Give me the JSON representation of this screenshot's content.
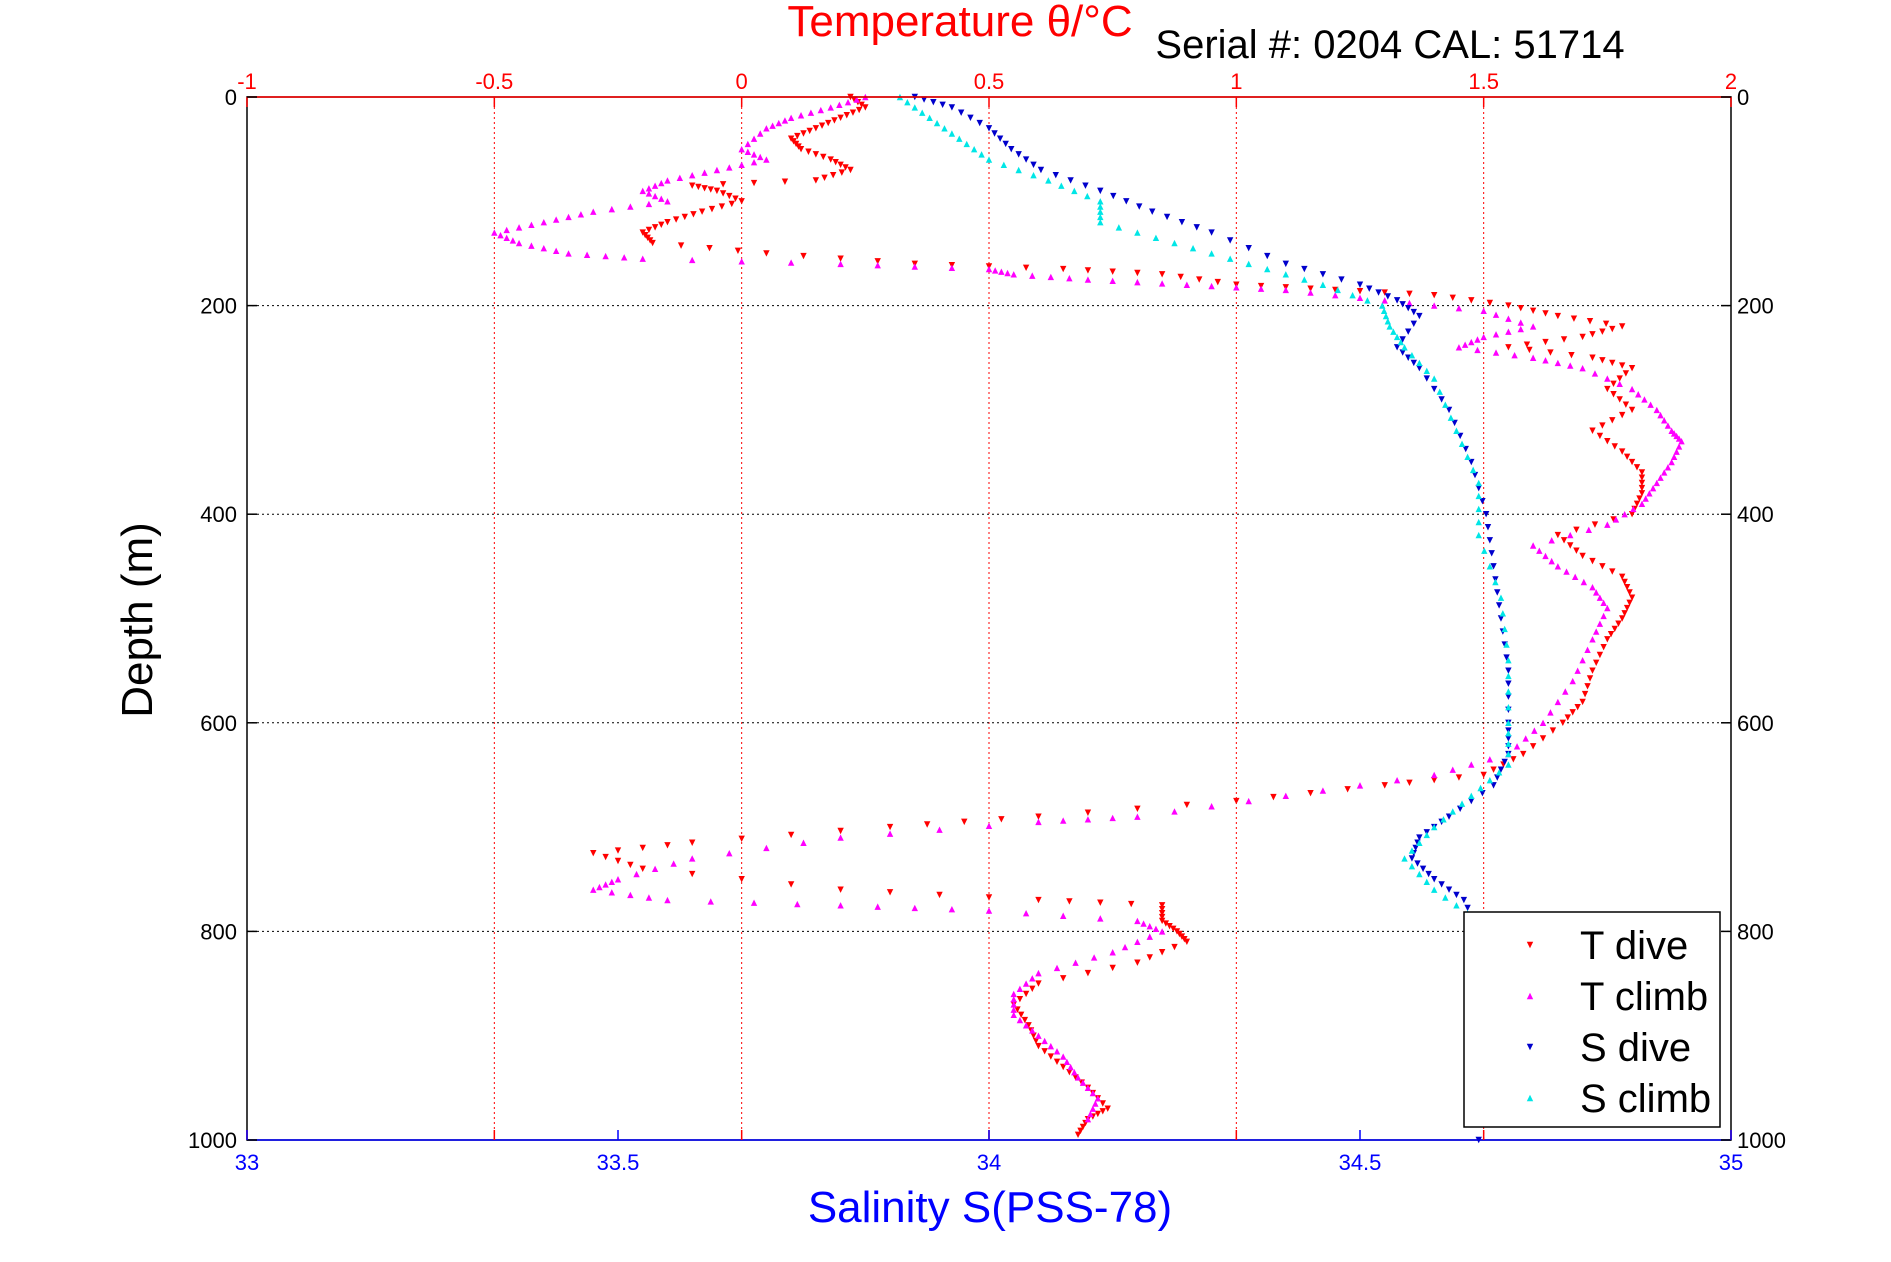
{
  "serial_label": "Serial #: 0204  CAL: 51714",
  "chart_data": {
    "type": "scatter",
    "top_axis": {
      "label": "Temperature θ/°C",
      "range": [
        -1,
        2
      ],
      "ticks": [
        "-1",
        "-0.5",
        "0",
        "0.5",
        "1",
        "1.5",
        "2"
      ],
      "color": "#ff0000"
    },
    "bottom_axis": {
      "label": "Salinity S(PSS-78)",
      "range": [
        33,
        35
      ],
      "ticks": [
        "33",
        "33.5",
        "34",
        "34.5",
        "35"
      ],
      "color": "#0000ff"
    },
    "y_axis": {
      "label": "Depth (m)",
      "range": [
        0,
        1000
      ],
      "reversed": true,
      "ticks": [
        "0",
        "200",
        "400",
        "600",
        "800",
        "1000"
      ]
    },
    "grid": true,
    "legend": {
      "position": "bottom-right",
      "entries": [
        {
          "label": "T dive",
          "color": "#ff0000",
          "marker": "triangle-down"
        },
        {
          "label": "T climb",
          "color": "#ff00ff",
          "marker": "triangle-up"
        },
        {
          "label": "S dive",
          "color": "#0000cc",
          "marker": "triangle-down"
        },
        {
          "label": "S climb",
          "color": "#00e6e6",
          "marker": "triangle-up"
        }
      ]
    },
    "series": [
      {
        "name": "T dive",
        "axis": "temperature",
        "color": "#ff0000",
        "points": [
          [
            0.22,
            0
          ],
          [
            0.25,
            10
          ],
          [
            0.2,
            20
          ],
          [
            0.15,
            30
          ],
          [
            0.1,
            40
          ],
          [
            0.12,
            50
          ],
          [
            0.18,
            60
          ],
          [
            0.22,
            70
          ],
          [
            0.15,
            80
          ],
          [
            -0.1,
            85
          ],
          [
            -0.05,
            90
          ],
          [
            0.0,
            100
          ],
          [
            -0.08,
            110
          ],
          [
            -0.15,
            120
          ],
          [
            -0.2,
            130
          ],
          [
            -0.18,
            140
          ],
          [
            0.05,
            150
          ],
          [
            0.35,
            160
          ],
          [
            0.65,
            165
          ],
          [
            0.85,
            170
          ],
          [
            1.0,
            180
          ],
          [
            1.2,
            185
          ],
          [
            1.4,
            190
          ],
          [
            1.55,
            200
          ],
          [
            1.65,
            210
          ],
          [
            1.78,
            220
          ],
          [
            1.7,
            230
          ],
          [
            1.55,
            240
          ],
          [
            1.72,
            250
          ],
          [
            1.8,
            260
          ],
          [
            1.75,
            280
          ],
          [
            1.8,
            300
          ],
          [
            1.72,
            320
          ],
          [
            1.78,
            340
          ],
          [
            1.82,
            360
          ],
          [
            1.82,
            380
          ],
          [
            1.8,
            400
          ],
          [
            1.65,
            420
          ],
          [
            1.7,
            440
          ],
          [
            1.78,
            460
          ],
          [
            1.8,
            480
          ],
          [
            1.78,
            500
          ],
          [
            1.75,
            520
          ],
          [
            1.72,
            550
          ],
          [
            1.7,
            580
          ],
          [
            1.66,
            600
          ],
          [
            1.58,
            630
          ],
          [
            1.5,
            650
          ],
          [
            1.3,
            660
          ],
          [
            1.0,
            675
          ],
          [
            0.6,
            690
          ],
          [
            0.3,
            700
          ],
          [
            -0.1,
            715
          ],
          [
            -0.3,
            725
          ],
          [
            -0.2,
            740
          ],
          [
            0.2,
            760
          ],
          [
            0.6,
            770
          ],
          [
            0.85,
            775
          ],
          [
            0.85,
            790
          ],
          [
            0.88,
            800
          ],
          [
            0.9,
            810
          ],
          [
            0.8,
            830
          ],
          [
            0.6,
            850
          ],
          [
            0.55,
            870
          ],
          [
            0.58,
            890
          ],
          [
            0.6,
            910
          ],
          [
            0.65,
            930
          ],
          [
            0.7,
            950
          ],
          [
            0.74,
            970
          ],
          [
            0.7,
            980
          ],
          [
            0.68,
            995
          ]
        ]
      },
      {
        "name": "T climb",
        "axis": "temperature",
        "color": "#ff00ff",
        "points": [
          [
            0.25,
            0
          ],
          [
            0.18,
            10
          ],
          [
            0.1,
            20
          ],
          [
            0.05,
            30
          ],
          [
            0.0,
            50
          ],
          [
            0.05,
            60
          ],
          [
            -0.05,
            70
          ],
          [
            -0.15,
            80
          ],
          [
            -0.2,
            90
          ],
          [
            -0.15,
            100
          ],
          [
            -0.3,
            110
          ],
          [
            -0.4,
            120
          ],
          [
            -0.5,
            130
          ],
          [
            -0.45,
            140
          ],
          [
            -0.35,
            150
          ],
          [
            -0.2,
            155
          ],
          [
            0.2,
            160
          ],
          [
            0.5,
            165
          ],
          [
            0.55,
            170
          ],
          [
            0.7,
            175
          ],
          [
            0.9,
            180
          ],
          [
            1.1,
            185
          ],
          [
            1.3,
            195
          ],
          [
            1.5,
            205
          ],
          [
            1.6,
            220
          ],
          [
            1.5,
            230
          ],
          [
            1.45,
            240
          ],
          [
            1.6,
            250
          ],
          [
            1.7,
            260
          ],
          [
            1.8,
            280
          ],
          [
            1.85,
            300
          ],
          [
            1.88,
            320
          ],
          [
            1.9,
            330
          ],
          [
            1.88,
            350
          ],
          [
            1.85,
            370
          ],
          [
            1.82,
            390
          ],
          [
            1.75,
            410
          ],
          [
            1.6,
            430
          ],
          [
            1.65,
            450
          ],
          [
            1.72,
            470
          ],
          [
            1.75,
            490
          ],
          [
            1.72,
            520
          ],
          [
            1.68,
            560
          ],
          [
            1.62,
            600
          ],
          [
            1.55,
            630
          ],
          [
            1.4,
            650
          ],
          [
            1.1,
            670
          ],
          [
            0.8,
            690
          ],
          [
            0.6,
            695
          ],
          [
            0.2,
            710
          ],
          [
            -0.1,
            730
          ],
          [
            -0.25,
            750
          ],
          [
            -0.3,
            760
          ],
          [
            -0.15,
            770
          ],
          [
            0.2,
            775
          ],
          [
            0.5,
            780
          ],
          [
            0.8,
            790
          ],
          [
            0.85,
            800
          ],
          [
            0.75,
            820
          ],
          [
            0.6,
            840
          ],
          [
            0.55,
            860
          ],
          [
            0.55,
            880
          ],
          [
            0.6,
            900
          ],
          [
            0.65,
            920
          ],
          [
            0.68,
            940
          ],
          [
            0.72,
            960
          ],
          [
            0.7,
            980
          ]
        ]
      },
      {
        "name": "S dive",
        "axis": "salinity",
        "color": "#0000cc",
        "points": [
          [
            33.9,
            0
          ],
          [
            33.95,
            10
          ],
          [
            34.0,
            30
          ],
          [
            34.03,
            50
          ],
          [
            34.07,
            70
          ],
          [
            34.15,
            90
          ],
          [
            34.22,
            110
          ],
          [
            34.3,
            130
          ],
          [
            34.4,
            160
          ],
          [
            34.5,
            180
          ],
          [
            34.55,
            195
          ],
          [
            34.58,
            210
          ],
          [
            34.55,
            240
          ],
          [
            34.58,
            260
          ],
          [
            34.62,
            300
          ],
          [
            34.65,
            350
          ],
          [
            34.67,
            400
          ],
          [
            34.68,
            450
          ],
          [
            34.69,
            500
          ],
          [
            34.7,
            550
          ],
          [
            34.7,
            600
          ],
          [
            34.7,
            630
          ],
          [
            34.68,
            660
          ],
          [
            34.62,
            690
          ],
          [
            34.58,
            710
          ],
          [
            34.57,
            730
          ],
          [
            34.6,
            750
          ],
          [
            34.64,
            770
          ],
          [
            34.66,
            800
          ],
          [
            34.66,
            900
          ],
          [
            34.66,
            1000
          ]
        ]
      },
      {
        "name": "S climb",
        "axis": "salinity",
        "color": "#00e6e6",
        "points": [
          [
            33.88,
            0
          ],
          [
            33.92,
            20
          ],
          [
            33.96,
            40
          ],
          [
            34.0,
            60
          ],
          [
            34.08,
            80
          ],
          [
            34.15,
            100
          ],
          [
            34.15,
            120
          ],
          [
            34.25,
            140
          ],
          [
            34.35,
            160
          ],
          [
            34.45,
            180
          ],
          [
            34.53,
            200
          ],
          [
            34.54,
            220
          ],
          [
            34.56,
            240
          ],
          [
            34.6,
            270
          ],
          [
            34.63,
            320
          ],
          [
            34.66,
            370
          ],
          [
            34.66,
            420
          ],
          [
            34.69,
            480
          ],
          [
            34.7,
            540
          ],
          [
            34.7,
            600
          ],
          [
            34.7,
            640
          ],
          [
            34.65,
            670
          ],
          [
            34.6,
            700
          ],
          [
            34.56,
            730
          ],
          [
            34.6,
            760
          ],
          [
            34.66,
            790
          ],
          [
            34.66,
            850
          ]
        ]
      }
    ]
  }
}
